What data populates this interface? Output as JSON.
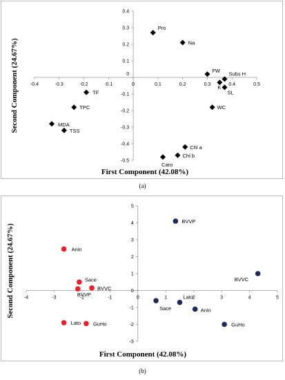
{
  "colors": {
    "panel_a_marker": "#000000",
    "panel_b_red": "#ee1c25",
    "panel_b_blue": "#1f2a5c"
  },
  "captions": {
    "a": "(a)",
    "b": "(b)"
  },
  "chart_data": [
    {
      "type": "scatter",
      "xlabel": "First Component (42.08%)",
      "ylabel": "Second Component (24.67%)",
      "xlim": [
        -0.4,
        0.5
      ],
      "ylim": [
        -0.5,
        0.4
      ],
      "xticks": [
        -0.4,
        -0.3,
        -0.2,
        -0.1,
        0,
        0.1,
        0.2,
        0.3,
        0.4,
        0.5
      ],
      "yticks": [
        -0.5,
        -0.4,
        -0.3,
        -0.2,
        -0.1,
        0,
        0.1,
        0.2,
        0.3,
        0.4
      ],
      "marker": "diamond",
      "grid": false,
      "points": [
        {
          "label": "Pro",
          "x": 0.08,
          "y": 0.27
        },
        {
          "label": "Na",
          "x": 0.2,
          "y": 0.21
        },
        {
          "label": "FW",
          "x": 0.3,
          "y": 0.02
        },
        {
          "label": "Subs H",
          "x": 0.37,
          "y": -0.01
        },
        {
          "label": "K",
          "x": 0.35,
          "y": -0.03
        },
        {
          "label": "SL",
          "x": 0.37,
          "y": -0.06
        },
        {
          "label": "WC",
          "x": 0.32,
          "y": -0.18
        },
        {
          "label": "TF",
          "x": -0.19,
          "y": -0.09
        },
        {
          "label": "TPC",
          "x": -0.24,
          "y": -0.18
        },
        {
          "label": "MDA",
          "x": -0.33,
          "y": -0.28
        },
        {
          "label": "TSS",
          "x": -0.28,
          "y": -0.32
        },
        {
          "label": "Chl a",
          "x": 0.21,
          "y": -0.42
        },
        {
          "label": "Chl b",
          "x": 0.18,
          "y": -0.47
        },
        {
          "label": "Caro",
          "x": 0.12,
          "y": -0.48
        }
      ]
    },
    {
      "type": "scatter",
      "xlabel": "First Component (42.08%)",
      "ylabel": "Second Component (24.67%)",
      "xlim": [
        -4,
        5
      ],
      "ylim": [
        -3,
        5
      ],
      "xticks": [
        -4,
        -3,
        -2,
        -1,
        0,
        1,
        2,
        3,
        4,
        5
      ],
      "yticks": [
        -3,
        -2,
        -1,
        0,
        1,
        2,
        3,
        4,
        5
      ],
      "marker": "circle",
      "grid": false,
      "points": [
        {
          "label": "Anin",
          "x": -2.65,
          "y": 2.45,
          "group": "red"
        },
        {
          "label": "Sace",
          "x": -2.1,
          "y": 0.5,
          "group": "red"
        },
        {
          "label": "BVVP",
          "x": -2.15,
          "y": 0.1,
          "group": "red"
        },
        {
          "label": "BVVC",
          "x": -1.65,
          "y": 0.15,
          "group": "red"
        },
        {
          "label": "Lato",
          "x": -2.65,
          "y": -1.9,
          "group": "red"
        },
        {
          "label": "GuHo",
          "x": -1.85,
          "y": -1.95,
          "group": "red"
        },
        {
          "label": "BVVP",
          "x": 1.35,
          "y": 4.1,
          "group": "blue"
        },
        {
          "label": "BVVC",
          "x": 4.3,
          "y": 1.0,
          "group": "blue"
        },
        {
          "label": "Sace",
          "x": 0.65,
          "y": -0.6,
          "group": "blue"
        },
        {
          "label": "Lato",
          "x": 1.5,
          "y": -0.7,
          "group": "blue"
        },
        {
          "label": "Anin",
          "x": 2.05,
          "y": -1.1,
          "group": "blue"
        },
        {
          "label": "GuHo",
          "x": 3.1,
          "y": -2.0,
          "group": "blue"
        }
      ]
    }
  ]
}
